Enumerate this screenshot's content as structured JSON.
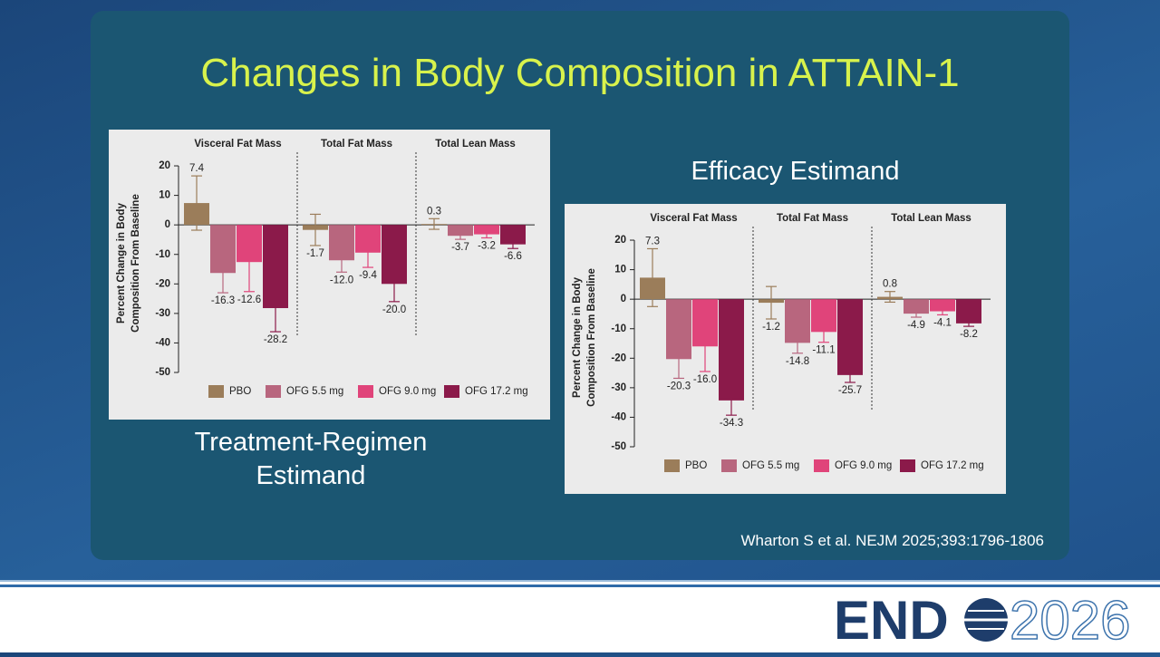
{
  "slide": {
    "title": "Changes in Body Composition in ATTAIN-1",
    "citation": "Wharton S et al. NEJM 2025;393:1796-1806",
    "logo_brand": "END",
    "logo_year": "2026"
  },
  "chart_data": [
    {
      "type": "bar",
      "subtitle_lines": [
        "Treatment-Regimen",
        "Estimand"
      ],
      "panels": [
        "Visceral Fat Mass",
        "Total Fat Mass",
        "Total Lean Mass"
      ],
      "ylabel_lines": [
        "Percent Change in Body",
        "Composition  From Baseline"
      ],
      "ylim": [
        -50,
        24
      ],
      "yticks": [
        20,
        10,
        0,
        -10,
        -20,
        -30,
        -40,
        -50
      ],
      "series": [
        {
          "name": "PBO",
          "color": "#9b7d5a",
          "values": [
            7.4,
            -1.7,
            0.3
          ],
          "value_labels": [
            "7.4",
            "-1.7",
            "0.3"
          ],
          "errors": [
            9.2,
            5.3,
            1.8
          ]
        },
        {
          "name": "OFG 5.5 mg",
          "color": "#b8667e",
          "values": [
            -16.3,
            -12.0,
            -3.7
          ],
          "value_labels": [
            "-16.3",
            "-12.0",
            "-3.7"
          ],
          "errors": [
            6.7,
            4,
            1.2
          ]
        },
        {
          "name": "OFG 9.0 mg",
          "color": "#e0447a",
          "values": [
            -12.6,
            -9.4,
            -3.2
          ],
          "value_labels": [
            "-12.6",
            "-9.4",
            "-3.2"
          ],
          "errors": [
            10,
            5,
            1.2
          ]
        },
        {
          "name": "OFG 17.2 mg",
          "color": "#8b1a4a",
          "values": [
            -28.2,
            -20.0,
            -6.6
          ],
          "value_labels": [
            "-28.2",
            "-20.0",
            "-6.6"
          ],
          "errors": [
            8,
            6,
            1.4
          ]
        }
      ]
    },
    {
      "type": "bar",
      "subtitle_lines": [
        "Efficacy Estimand"
      ],
      "panels": [
        "Visceral Fat Mass",
        "Total Fat Mass",
        "Total Lean Mass"
      ],
      "ylabel_lines": [
        "Percent Change in Body",
        "Composition  From Baseline"
      ],
      "ylim": [
        -50,
        24
      ],
      "yticks": [
        20,
        10,
        0,
        -10,
        -20,
        -30,
        -40,
        -50
      ],
      "series": [
        {
          "name": "PBO",
          "color": "#9b7d5a",
          "values": [
            7.3,
            -1.2,
            0.8
          ],
          "value_labels": [
            "7.3",
            "-1.2",
            "0.8"
          ],
          "errors": [
            9.8,
            5.5,
            1.8
          ]
        },
        {
          "name": "OFG 5.5 mg",
          "color": "#b8667e",
          "values": [
            -20.3,
            -14.8,
            -4.9
          ],
          "value_labels": [
            "-20.3",
            "-14.8",
            "-4.9"
          ],
          "errors": [
            6.5,
            3.5,
            1.2
          ]
        },
        {
          "name": "OFG 9.0 mg",
          "color": "#e0447a",
          "values": [
            -16.0,
            -11.1,
            -4.1
          ],
          "value_labels": [
            "-16.0",
            "-11.1",
            "-4.1"
          ],
          "errors": [
            8.5,
            3.5,
            1.2
          ]
        },
        {
          "name": "OFG 17.2 mg",
          "color": "#8b1a4a",
          "values": [
            -34.3,
            -25.7,
            -8.2
          ],
          "value_labels": [
            "-34.3",
            "-25.7",
            "-8.2"
          ],
          "errors": [
            5,
            2.5,
            1
          ]
        }
      ]
    }
  ]
}
